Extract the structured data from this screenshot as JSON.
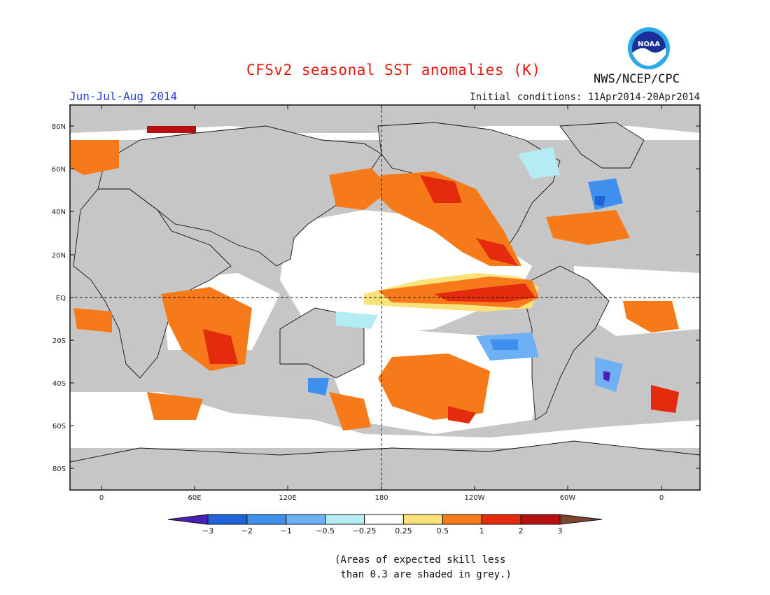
{
  "title": "CFSv2 seasonal SST anomalies (K)",
  "season": "Jun-Jul-Aug 2014",
  "initial_conditions": "Initial conditions: 11Apr2014-20Apr2014",
  "agency": "NWS/NCEP/CPC",
  "logo_text": "NOAA",
  "skill_note_line1": "(Areas of expected skill less",
  "skill_note_line2": " than 0.3 are shaded in grey.)",
  "lat_labels": [
    "80N",
    "60N",
    "40N",
    "20N",
    "EQ",
    "20S",
    "40S",
    "60S",
    "80S"
  ],
  "lon_labels": [
    "0",
    "60E",
    "120E",
    "180",
    "120W",
    "60W",
    "0"
  ],
  "colorbar": {
    "labels": [
      "−3",
      "−2",
      "−1",
      "−0.5",
      "−0.25",
      "0.25",
      "0.5",
      "1",
      "2",
      "3"
    ],
    "colors": [
      "#4a1fb5",
      "#1f64d8",
      "#3f90ee",
      "#6eb0f4",
      "#b4ecf4",
      "#ffffff",
      "#fae27a",
      "#f77a1a",
      "#e52b0d",
      "#b50f0f",
      "#7a4430"
    ]
  },
  "colors": {
    "land": "#c6c6c6",
    "ocean_neutral": "#ffffff",
    "grey_mask": "#c6c6c6"
  }
}
